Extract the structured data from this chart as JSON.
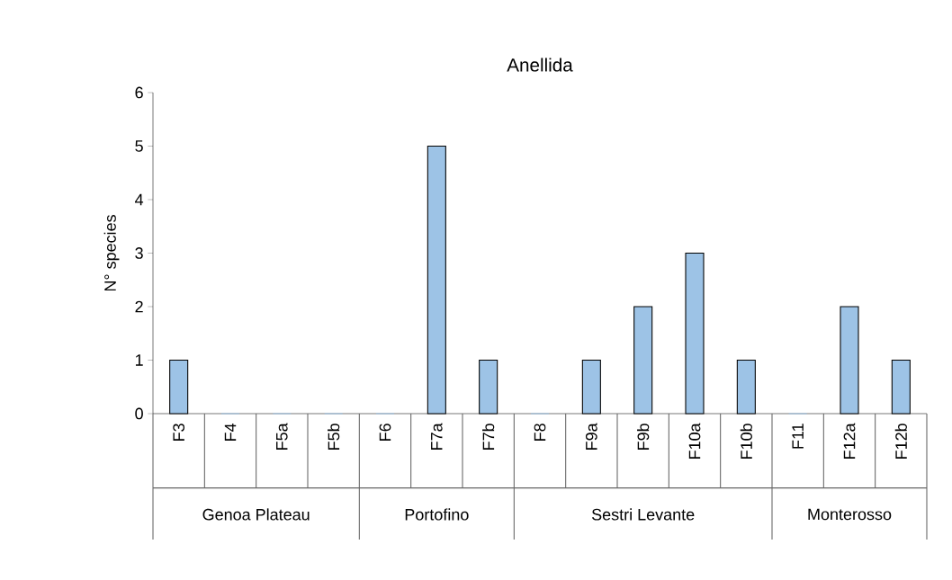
{
  "chart_data": {
    "type": "bar",
    "title": "Anellida",
    "ylabel": "N° species",
    "categories": [
      "F3",
      "F4",
      "F5a",
      "F5b",
      "F6",
      "F7a",
      "F7b",
      "F8",
      "F9a",
      "F9b",
      "F10a",
      "F10b",
      "F11",
      "F12a",
      "F12b"
    ],
    "values": [
      1,
      0,
      0,
      0,
      0,
      5,
      1,
      0,
      1,
      2,
      3,
      1,
      0,
      2,
      1
    ],
    "color": "#9dc3e6",
    "ylim": [
      0,
      6
    ],
    "yticks": [
      0,
      1,
      2,
      3,
      4,
      5,
      6
    ],
    "grid": false,
    "annotations": [
      "Genoa Plateau",
      "Portofino",
      "Sestri Levante",
      "Monterosso"
    ]
  }
}
